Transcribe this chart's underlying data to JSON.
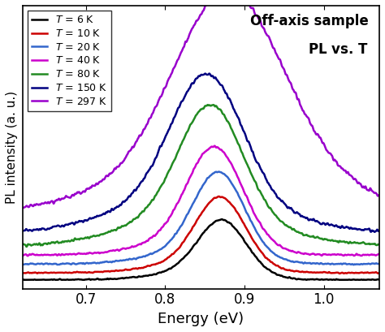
{
  "title1": "Off-axis sample",
  "title2": "PL vs. ",
  "title2_italic": "T",
  "xlabel": "Energy (eV)",
  "ylabel": "PL intensity (a. u.)",
  "xlim": [
    0.62,
    1.07
  ],
  "ylim": [
    -0.05,
    1.55
  ],
  "xticks": [
    0.7,
    0.8,
    0.9,
    1.0
  ],
  "temperatures": [
    6,
    10,
    20,
    40,
    80,
    150,
    297
  ],
  "colors": [
    "#000000",
    "#cc0000",
    "#3366cc",
    "#cc00cc",
    "#228B22",
    "#000080",
    "#9900cc"
  ],
  "peak_centers": [
    0.872,
    0.87,
    0.868,
    0.863,
    0.858,
    0.853,
    0.875
  ],
  "peak_widths": [
    0.03,
    0.031,
    0.032,
    0.035,
    0.04,
    0.045,
    0.065
  ],
  "peak_heights": [
    0.3,
    0.38,
    0.46,
    0.54,
    0.62,
    0.7,
    0.85
  ],
  "baselines": [
    0.0,
    0.04,
    0.09,
    0.14,
    0.19,
    0.26,
    0.35
  ],
  "noise_levels": [
    0.005,
    0.005,
    0.006,
    0.007,
    0.01,
    0.012,
    0.015
  ],
  "line_widths": [
    1.8,
    1.8,
    1.8,
    1.8,
    1.8,
    1.8,
    1.8
  ],
  "figsize": [
    4.74,
    4.09
  ],
  "dpi": 100,
  "legend_loc": "upper left"
}
